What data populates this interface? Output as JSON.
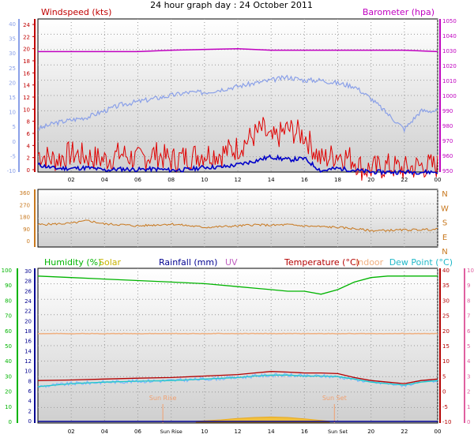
{
  "title": "24 hour graph day : 24 October 2011",
  "colors": {
    "wind": "#e00000",
    "gust": "#0000c8",
    "baro": "#c000c0",
    "winddir": "#c8781e",
    "humidity": "#00b400",
    "solar": "#c8b400",
    "rain": "#000090",
    "uv": "#c060c0",
    "temp": "#b40000",
    "indoor": "#f0b080",
    "dew": "#20c8c8",
    "leftAxis": "#8aa0e8",
    "rightPink": "#e060a0"
  },
  "chart_data": [
    {
      "type": "line",
      "name_hint": "wind-baro",
      "labels": {
        "windspeed": "Windspeed (kts)",
        "barometer": "Barometer (hpa)"
      },
      "x_ticks": [
        "02",
        "04",
        "06",
        "08",
        "10",
        "12",
        "14",
        "16",
        "18",
        "20",
        "22",
        "00"
      ],
      "left_outer_ticks": [
        "40",
        "35",
        "30",
        "25",
        "20",
        "15",
        "10",
        "5",
        "0",
        "-5",
        "-10"
      ],
      "left_ticks": [
        "24",
        "22",
        "20",
        "18",
        "16",
        "14",
        "12",
        "10",
        "8",
        "6",
        "4",
        "2",
        "0"
      ],
      "left_range": [
        0,
        25
      ],
      "right_ticks": [
        "1050",
        "1040",
        "1030",
        "1020",
        "1010",
        "1000",
        "990",
        "980",
        "970",
        "960",
        "950"
      ],
      "right_range": [
        947,
        1050
      ],
      "series": [
        {
          "key": "barometer",
          "x": [
            0,
            3,
            6,
            8,
            12,
            14,
            17,
            20,
            22,
            24
          ],
          "y": [
            1028,
            1028,
            1028,
            1029,
            1030,
            1029,
            1029,
            1029,
            1029,
            1028
          ]
        },
        {
          "key": "outer",
          "x": [
            0,
            1,
            3,
            5,
            7,
            9,
            10,
            11,
            12,
            13,
            14,
            15,
            16,
            17,
            18,
            19,
            20,
            21,
            22,
            23,
            24
          ],
          "y": [
            7,
            8,
            9,
            11,
            12,
            13,
            13,
            13.5,
            14,
            14.5,
            15,
            15.5,
            15,
            15,
            14.5,
            14,
            12,
            9.5,
            7,
            10,
            10
          ]
        },
        {
          "key": "windspeed",
          "x": [
            0,
            1,
            2,
            3,
            4,
            5,
            6,
            7,
            8,
            9,
            10,
            11,
            12,
            13,
            13.5,
            14,
            15,
            16,
            17,
            18,
            19,
            19.5,
            20,
            21,
            22,
            23,
            24
          ],
          "y": [
            3,
            2,
            3,
            2.5,
            2,
            3,
            2,
            3,
            2,
            2.5,
            3,
            3,
            4,
            6,
            7,
            5,
            7,
            6,
            2,
            3,
            2,
            0.5,
            0.5,
            1,
            0.5,
            1,
            1
          ]
        },
        {
          "key": "gust",
          "x": [
            0,
            1,
            2,
            3,
            4,
            5,
            6,
            7,
            8,
            9,
            10,
            11,
            12,
            13,
            14,
            15,
            16,
            17,
            18,
            19,
            20,
            21,
            22,
            23,
            24
          ],
          "y": [
            1.2,
            0.6,
            0.6,
            0.7,
            0.3,
            0.5,
            0.4,
            0.5,
            0.3,
            0.4,
            0.8,
            0.8,
            1.2,
            1.8,
            2.5,
            2.0,
            2.2,
            0.2,
            0.6,
            0.3,
            0,
            0,
            0,
            0,
            0
          ]
        }
      ]
    },
    {
      "type": "line",
      "name_hint": "wind-direction",
      "left_ticks": [
        "360",
        "270",
        "180",
        "90",
        "0"
      ],
      "left_range": [
        0,
        360
      ],
      "right_ticks": [
        "N",
        "W",
        "S",
        "E",
        "N"
      ],
      "series": [
        {
          "key": "direction",
          "x": [
            0,
            1,
            2,
            3,
            4,
            5,
            6,
            8,
            10,
            12,
            13,
            14,
            15,
            16,
            17,
            18,
            19,
            20,
            22,
            24
          ],
          "y": [
            120,
            125,
            130,
            150,
            125,
            120,
            110,
            125,
            100,
            110,
            120,
            115,
            120,
            110,
            105,
            100,
            90,
            75,
            80,
            85
          ]
        }
      ]
    },
    {
      "type": "line",
      "name_hint": "thermo",
      "labels": {
        "humidity": "Humidity (%)",
        "solar": "Solar",
        "rain": "Rainfall (mm)",
        "uv": "UV",
        "temp": "Temperature (°C)",
        "indoor": "Indoor",
        "dew": "Dew Point (°C)",
        "sunrise": "Sun Rise",
        "sunset": "Sun Set"
      },
      "x_ticks": [
        "02",
        "04",
        "06",
        "Sun Rise",
        "10",
        "12",
        "14",
        "16",
        "Sun Set",
        "20",
        "22",
        "00"
      ],
      "hum_ticks": [
        "100",
        "90",
        "80",
        "70",
        "60",
        "50",
        "40",
        "30",
        "20",
        "10",
        "0"
      ],
      "rain_ticks": [
        "30",
        "28",
        "26",
        "24",
        "22",
        "20",
        "18",
        "16",
        "14",
        "12",
        "10",
        "8",
        "6",
        "4",
        "2",
        "0"
      ],
      "temp_ticks": [
        "40",
        "35",
        "30",
        "25",
        "20",
        "15",
        "10",
        "5",
        "0",
        "-5",
        "-10"
      ],
      "uv_ticks": [
        "10",
        "9",
        "8",
        "7",
        "6",
        "5",
        "4",
        "3",
        "2",
        "1",
        "0"
      ],
      "hum_range": [
        0,
        100
      ],
      "temp_range": [
        -10,
        40
      ],
      "sunrise_x": 7.5,
      "sunset_x": 17.8,
      "series": [
        {
          "key": "humidity",
          "x": [
            0,
            2,
            4,
            6,
            8,
            10,
            12,
            13,
            14,
            15,
            16,
            17,
            18,
            19,
            20,
            21,
            22,
            23,
            24
          ],
          "y": [
            97,
            96,
            95,
            94,
            93,
            92,
            90,
            89,
            88,
            87,
            87,
            85,
            88,
            93,
            96,
            97,
            97,
            97,
            97
          ]
        },
        {
          "key": "indoor",
          "x": [
            0,
            24
          ],
          "y": [
            19.5,
            19.5
          ]
        },
        {
          "key": "temp",
          "x": [
            0,
            2,
            4,
            6,
            8,
            10,
            12,
            13,
            14,
            15,
            16,
            17,
            18,
            19,
            20,
            21,
            22,
            23,
            24
          ],
          "y": [
            4,
            4.2,
            4.5,
            4.8,
            5,
            5.5,
            6,
            6.5,
            7,
            6.8,
            6.5,
            6.5,
            6.3,
            5,
            4,
            3.5,
            3,
            4,
            4.5
          ]
        },
        {
          "key": "dewpoint",
          "x": [
            0,
            2,
            4,
            6,
            8,
            10,
            12,
            13,
            14,
            15,
            16,
            17,
            18,
            19,
            20,
            21,
            22,
            23,
            24
          ],
          "y": [
            2,
            3,
            3.5,
            3.8,
            4,
            4.5,
            5,
            5.5,
            5.8,
            5.8,
            5.5,
            5.5,
            5.3,
            4.5,
            3.5,
            3,
            2.5,
            3.5,
            4
          ]
        },
        {
          "key": "solar",
          "x": [
            9.5,
            11,
            12,
            13,
            14,
            15,
            16,
            17.5
          ],
          "y": [
            0.2,
            0.5,
            0.8,
            1.0,
            1.1,
            1.0,
            0.7,
            0.2
          ]
        },
        {
          "key": "rain",
          "x": [
            0,
            24
          ],
          "y": [
            0,
            0
          ]
        }
      ]
    }
  ]
}
